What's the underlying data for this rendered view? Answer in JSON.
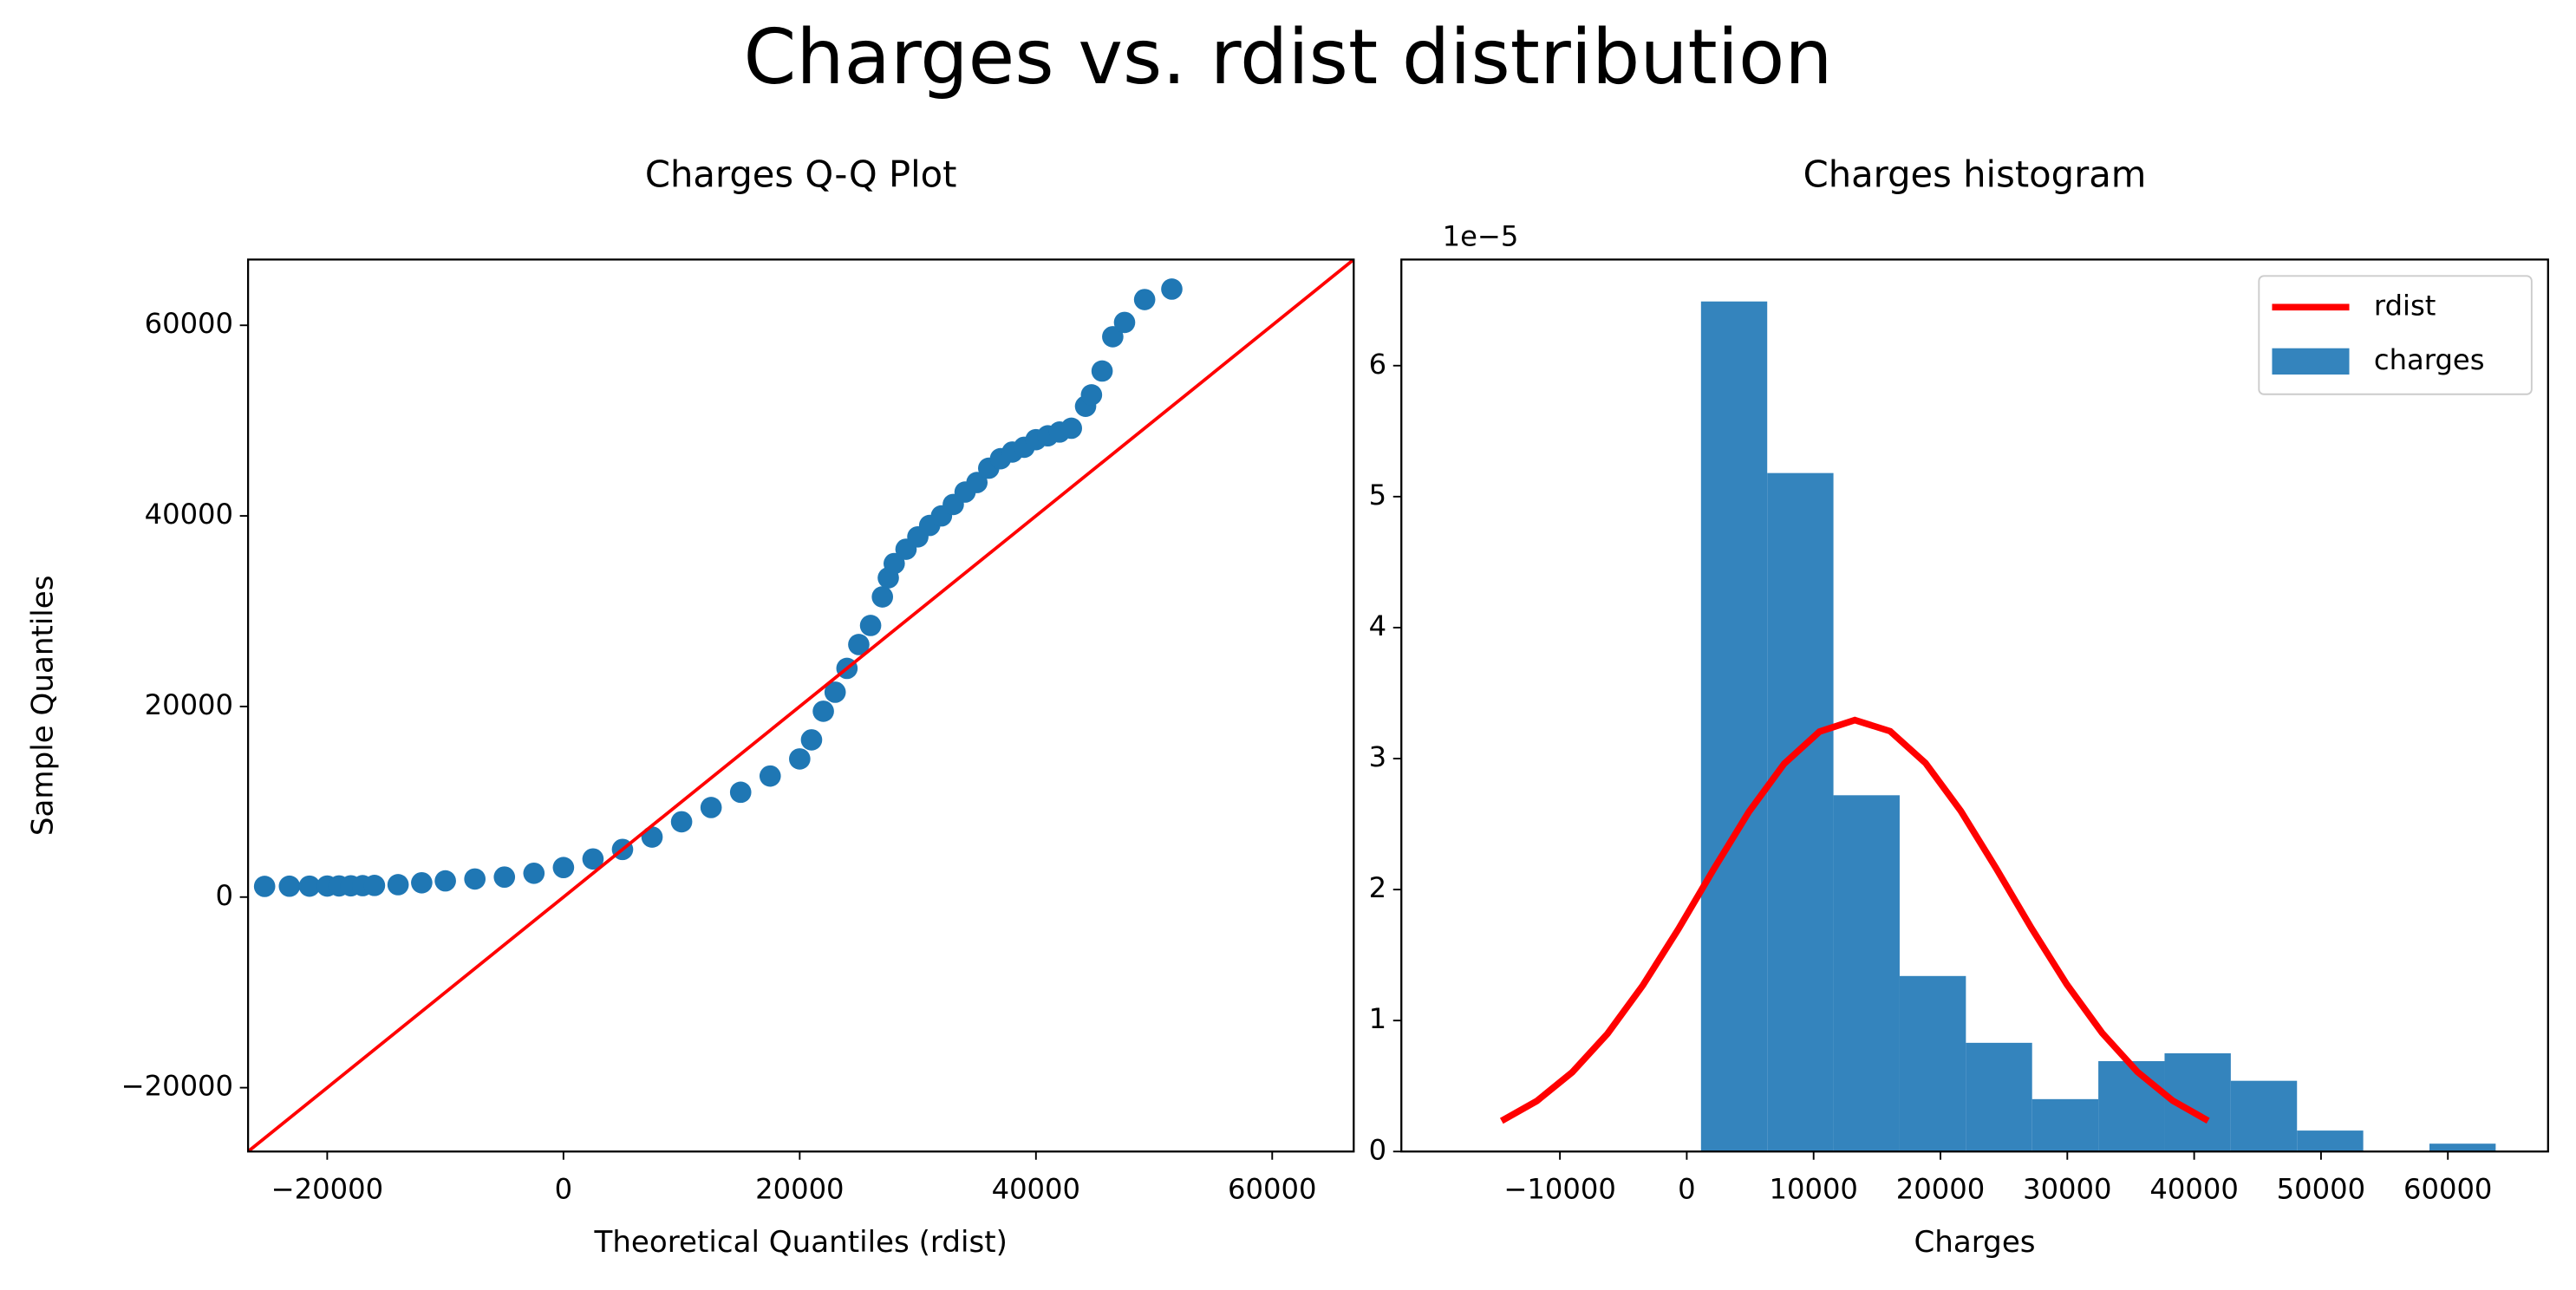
{
  "title": "Charges vs. rdist distribution",
  "chart_data": [
    {
      "type": "scatter",
      "title": "Charges Q-Q Plot",
      "xlabel": "Theoretical Quantiles (rdist)",
      "ylabel": "Sample Quantiles",
      "color": "#1f77b4",
      "x": [
        -25300,
        -23200,
        -21500,
        -20000,
        -19000,
        -18000,
        -17000,
        -16000,
        -14000,
        -12000,
        -10000,
        -7500,
        -5000,
        -2500,
        0,
        2500,
        5000,
        7500,
        10000,
        12500,
        15000,
        17500,
        20000,
        21000,
        22000,
        23000,
        24000,
        25000,
        26000,
        27000,
        27500,
        28000,
        29000,
        30000,
        31000,
        32000,
        33000,
        34000,
        35000,
        36000,
        37000,
        38000,
        39000,
        40000,
        41000,
        42000,
        43000,
        44200,
        44700,
        45600,
        46500,
        47500,
        49200,
        51500
      ],
      "y": [
        1120,
        1140,
        1150,
        1160,
        1170,
        1180,
        1200,
        1220,
        1300,
        1500,
        1700,
        1900,
        2100,
        2500,
        3100,
        4000,
        5000,
        6300,
        7900,
        9400,
        11000,
        12700,
        14500,
        16500,
        19500,
        21500,
        24000,
        26500,
        28500,
        31500,
        33500,
        35000,
        36500,
        37800,
        39000,
        40000,
        41200,
        42500,
        43500,
        45000,
        46000,
        46700,
        47200,
        48000,
        48400,
        48800,
        49200,
        51500,
        52700,
        55200,
        58800,
        60300,
        62700,
        63800
      ],
      "line": {
        "x": [
          -26700,
          66900
        ],
        "y": [
          -26700,
          66900
        ],
        "color": "#ff0000"
      },
      "xlim": [
        -26700,
        66900
      ],
      "ylim": [
        -26700,
        66900
      ],
      "xticks": [
        {
          "value": -20000,
          "label": "−20000"
        },
        0,
        20000,
        40000,
        60000
      ],
      "yticks": [
        {
          "value": -20000,
          "label": "−20000"
        },
        0,
        20000,
        40000,
        60000
      ]
    },
    {
      "type": "histogram",
      "title": "Charges histogram",
      "xlabel": "Charges",
      "y_offset": "1e−5",
      "legend": "upper right",
      "series": [
        {
          "name": "rdist",
          "type": "line",
          "color": "#ff0000",
          "x": [
            -14600,
            -11815,
            -9030,
            -6245,
            -3460,
            -675,
            2110,
            4895,
            7680,
            10465,
            13250,
            16035,
            18820,
            21605,
            24390,
            27175,
            29960,
            32745,
            35530,
            38315,
            41100
          ],
          "values": [
            0.234,
            0.386,
            0.605,
            0.9,
            1.269,
            1.696,
            2.153,
            2.593,
            2.961,
            3.206,
            3.294,
            3.209,
            2.966,
            2.6,
            2.162,
            1.705,
            1.276,
            0.905,
            0.608,
            0.388,
            0.235
          ]
        },
        {
          "name": "charges",
          "type": "bar",
          "color": "#3484bd",
          "bins": [
            1122,
            6343,
            11563,
            16784,
            22005,
            27225,
            32446,
            37667,
            42888,
            48108,
            53329,
            58550,
            63770
          ],
          "values": [
            6.49,
            5.18,
            2.72,
            1.34,
            0.83,
            0.4,
            0.69,
            0.75,
            0.54,
            0.16,
            0,
            0.06
          ]
        }
      ],
      "xlim": [
        -22500,
        67900
      ],
      "ylim": [
        0,
        6.81
      ],
      "xticks": [
        {
          "value": -10000,
          "label": "−10000"
        },
        0,
        10000,
        20000,
        30000,
        40000,
        50000,
        60000
      ],
      "yticks": [
        0,
        1,
        2,
        3,
        4,
        5,
        6
      ]
    }
  ]
}
